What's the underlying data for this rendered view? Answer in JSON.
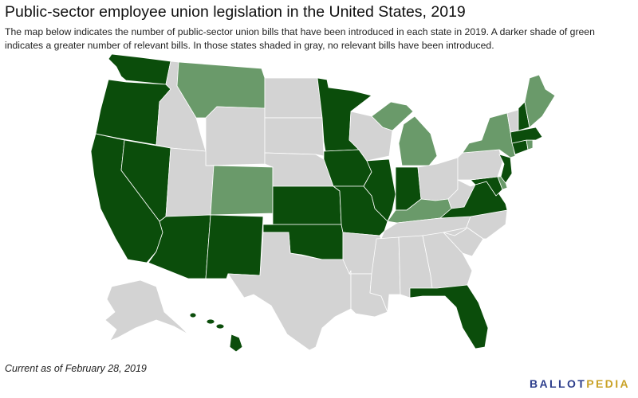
{
  "title": "Public-sector employee union legislation in the United States, 2019",
  "description": "The map below indicates the number of public-sector union bills that have been introduced in each state in 2019. A darker shade of green indicates a greater number of relevant bills. In those states shaded in gray, no relevant bills have been introduced.",
  "footnote": "Current as of February 28, 2019",
  "brand": {
    "part1": "BALLOT",
    "part2": "PEDIA",
    "color1": "#2d3e8c",
    "color2": "#c9a227"
  },
  "colors": {
    "dark": "#0b4d0b",
    "light": "#6a9a6a",
    "none": "#d3d3d3",
    "border": "#ffffff"
  },
  "states": {
    "WA": "dark",
    "OR": "dark",
    "CA": "dark",
    "NV": "dark",
    "ID": "none",
    "MT": "light",
    "WY": "none",
    "UT": "none",
    "AZ": "dark",
    "CO": "light",
    "NM": "dark",
    "ND": "none",
    "SD": "none",
    "NE": "none",
    "KS": "dark",
    "OK": "dark",
    "TX": "none",
    "MN": "dark",
    "IA": "dark",
    "MO": "dark",
    "AR": "none",
    "LA": "none",
    "WI": "none",
    "IL": "dark",
    "MI": "light",
    "IN": "dark",
    "OH": "none",
    "KY": "light",
    "TN": "none",
    "MS": "none",
    "AL": "none",
    "GA": "none",
    "FL": "dark",
    "SC": "none",
    "NC": "none",
    "VA": "dark",
    "WV": "none",
    "PA": "none",
    "NY": "light",
    "NJ": "dark",
    "DE": "light",
    "MD": "dark",
    "CT": "dark",
    "RI": "light",
    "MA": "dark",
    "VT": "none",
    "NH": "dark",
    "ME": "light",
    "AK": "none",
    "HI": "dark"
  }
}
